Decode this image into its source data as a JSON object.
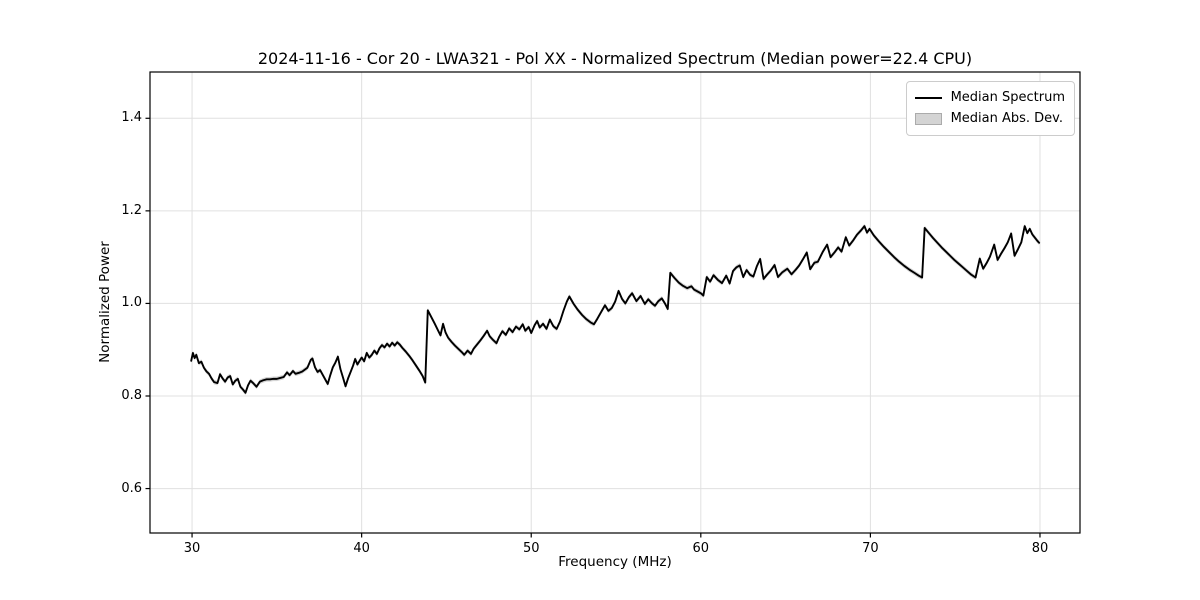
{
  "chart_data": {
    "type": "line",
    "title": "2024-11-16 - Cor 20 - LWA321 - Pol XX - Normalized Spectrum (Median power=22.4 CPU)",
    "xlabel": "Frequency (MHz)",
    "ylabel": "Normalized Power",
    "xlim": [
      27.52,
      82.36
    ],
    "ylim": [
      0.504,
      1.5
    ],
    "xticks": [
      30,
      40,
      50,
      60,
      70,
      80
    ],
    "yticks": [
      0.6,
      0.8,
      1.0,
      1.2,
      1.4
    ],
    "grid": true,
    "grid_color": "#e0e0e0",
    "line_color": "#000000",
    "band_color": "#d4d4d4",
    "legend": {
      "position": "upper right",
      "entries": [
        {
          "label": "Median Spectrum",
          "type": "line",
          "color": "#000000"
        },
        {
          "label": "Median Abs. Dev.",
          "type": "patch",
          "color": "#d4d4d4"
        }
      ]
    },
    "mad_band_halfwidth": 0.005,
    "series": [
      {
        "name": "Median Spectrum",
        "points": [
          [
            29.95,
            0.876
          ],
          [
            30.05,
            0.893
          ],
          [
            30.15,
            0.882
          ],
          [
            30.25,
            0.889
          ],
          [
            30.4,
            0.871
          ],
          [
            30.55,
            0.874
          ],
          [
            30.7,
            0.861
          ],
          [
            30.85,
            0.853
          ],
          [
            31.0,
            0.848
          ],
          [
            31.15,
            0.838
          ],
          [
            31.3,
            0.83
          ],
          [
            31.5,
            0.828
          ],
          [
            31.65,
            0.847
          ],
          [
            31.8,
            0.838
          ],
          [
            31.95,
            0.831
          ],
          [
            32.1,
            0.84
          ],
          [
            32.25,
            0.843
          ],
          [
            32.4,
            0.825
          ],
          [
            32.55,
            0.833
          ],
          [
            32.7,
            0.837
          ],
          [
            32.85,
            0.82
          ],
          [
            33.0,
            0.814
          ],
          [
            33.15,
            0.807
          ],
          [
            33.3,
            0.823
          ],
          [
            33.45,
            0.833
          ],
          [
            33.6,
            0.828
          ],
          [
            33.8,
            0.82
          ],
          [
            34.0,
            0.831
          ],
          [
            34.2,
            0.834
          ],
          [
            34.4,
            0.836
          ],
          [
            34.6,
            0.836
          ],
          [
            34.8,
            0.837
          ],
          [
            35.0,
            0.837
          ],
          [
            35.2,
            0.839
          ],
          [
            35.4,
            0.841
          ],
          [
            35.6,
            0.851
          ],
          [
            35.75,
            0.845
          ],
          [
            35.95,
            0.854
          ],
          [
            36.1,
            0.848
          ],
          [
            36.3,
            0.85
          ],
          [
            36.5,
            0.853
          ],
          [
            36.65,
            0.857
          ],
          [
            36.8,
            0.861
          ],
          [
            37.0,
            0.878
          ],
          [
            37.1,
            0.881
          ],
          [
            37.25,
            0.862
          ],
          [
            37.4,
            0.852
          ],
          [
            37.55,
            0.856
          ],
          [
            37.7,
            0.846
          ],
          [
            37.85,
            0.836
          ],
          [
            38.0,
            0.826
          ],
          [
            38.15,
            0.845
          ],
          [
            38.3,
            0.862
          ],
          [
            38.45,
            0.872
          ],
          [
            38.6,
            0.885
          ],
          [
            38.75,
            0.858
          ],
          [
            38.9,
            0.84
          ],
          [
            39.05,
            0.821
          ],
          [
            39.2,
            0.838
          ],
          [
            39.35,
            0.852
          ],
          [
            39.5,
            0.866
          ],
          [
            39.62,
            0.88
          ],
          [
            39.75,
            0.868
          ],
          [
            39.88,
            0.876
          ],
          [
            40.0,
            0.883
          ],
          [
            40.15,
            0.875
          ],
          [
            40.3,
            0.893
          ],
          [
            40.45,
            0.883
          ],
          [
            40.6,
            0.889
          ],
          [
            40.75,
            0.898
          ],
          [
            40.9,
            0.891
          ],
          [
            41.05,
            0.903
          ],
          [
            41.2,
            0.91
          ],
          [
            41.35,
            0.905
          ],
          [
            41.5,
            0.913
          ],
          [
            41.65,
            0.907
          ],
          [
            41.8,
            0.915
          ],
          [
            41.95,
            0.909
          ],
          [
            42.1,
            0.916
          ],
          [
            42.25,
            0.911
          ],
          [
            42.4,
            0.904
          ],
          [
            42.6,
            0.896
          ],
          [
            42.8,
            0.887
          ],
          [
            43.0,
            0.877
          ],
          [
            43.2,
            0.866
          ],
          [
            43.4,
            0.855
          ],
          [
            43.6,
            0.843
          ],
          [
            43.75,
            0.829
          ],
          [
            43.9,
            0.985
          ],
          [
            44.1,
            0.971
          ],
          [
            44.3,
            0.957
          ],
          [
            44.5,
            0.942
          ],
          [
            44.65,
            0.931
          ],
          [
            44.8,
            0.956
          ],
          [
            44.95,
            0.937
          ],
          [
            45.1,
            0.926
          ],
          [
            45.3,
            0.917
          ],
          [
            45.5,
            0.909
          ],
          [
            45.7,
            0.902
          ],
          [
            45.9,
            0.895
          ],
          [
            46.05,
            0.889
          ],
          [
            46.25,
            0.898
          ],
          [
            46.45,
            0.891
          ],
          [
            46.6,
            0.902
          ],
          [
            46.8,
            0.911
          ],
          [
            47.0,
            0.92
          ],
          [
            47.2,
            0.93
          ],
          [
            47.4,
            0.941
          ],
          [
            47.55,
            0.929
          ],
          [
            47.75,
            0.921
          ],
          [
            47.95,
            0.914
          ],
          [
            48.1,
            0.927
          ],
          [
            48.3,
            0.94
          ],
          [
            48.5,
            0.932
          ],
          [
            48.7,
            0.946
          ],
          [
            48.9,
            0.938
          ],
          [
            49.1,
            0.95
          ],
          [
            49.3,
            0.944
          ],
          [
            49.5,
            0.955
          ],
          [
            49.65,
            0.941
          ],
          [
            49.85,
            0.949
          ],
          [
            50.0,
            0.936
          ],
          [
            50.2,
            0.953
          ],
          [
            50.35,
            0.962
          ],
          [
            50.5,
            0.948
          ],
          [
            50.7,
            0.956
          ],
          [
            50.9,
            0.945
          ],
          [
            51.1,
            0.965
          ],
          [
            51.3,
            0.951
          ],
          [
            51.5,
            0.945
          ],
          [
            51.7,
            0.961
          ],
          [
            51.9,
            0.984
          ],
          [
            52.1,
            1.004
          ],
          [
            52.25,
            1.015
          ],
          [
            52.5,
            0.999
          ],
          [
            52.75,
            0.986
          ],
          [
            53.0,
            0.975
          ],
          [
            53.25,
            0.966
          ],
          [
            53.5,
            0.959
          ],
          [
            53.7,
            0.955
          ],
          [
            53.9,
            0.967
          ],
          [
            54.1,
            0.98
          ],
          [
            54.35,
            0.996
          ],
          [
            54.55,
            0.984
          ],
          [
            54.75,
            0.99
          ],
          [
            54.95,
            1.004
          ],
          [
            55.15,
            1.027
          ],
          [
            55.35,
            1.01
          ],
          [
            55.55,
            1.0
          ],
          [
            55.75,
            1.013
          ],
          [
            55.95,
            1.022
          ],
          [
            56.2,
            1.005
          ],
          [
            56.45,
            1.016
          ],
          [
            56.7,
            0.999
          ],
          [
            56.9,
            1.009
          ],
          [
            57.1,
            1.001
          ],
          [
            57.3,
            0.995
          ],
          [
            57.5,
            1.005
          ],
          [
            57.7,
            1.011
          ],
          [
            57.9,
            0.999
          ],
          [
            58.05,
            0.988
          ],
          [
            58.2,
            1.066
          ],
          [
            58.45,
            1.055
          ],
          [
            58.7,
            1.045
          ],
          [
            58.95,
            1.038
          ],
          [
            59.2,
            1.033
          ],
          [
            59.45,
            1.037
          ],
          [
            59.6,
            1.03
          ],
          [
            59.8,
            1.026
          ],
          [
            60.0,
            1.022
          ],
          [
            60.15,
            1.017
          ],
          [
            60.35,
            1.057
          ],
          [
            60.55,
            1.047
          ],
          [
            60.75,
            1.061
          ],
          [
            61.0,
            1.051
          ],
          [
            61.25,
            1.044
          ],
          [
            61.5,
            1.06
          ],
          [
            61.7,
            1.043
          ],
          [
            61.9,
            1.07
          ],
          [
            62.1,
            1.078
          ],
          [
            62.3,
            1.082
          ],
          [
            62.5,
            1.057
          ],
          [
            62.7,
            1.072
          ],
          [
            62.9,
            1.062
          ],
          [
            63.1,
            1.058
          ],
          [
            63.3,
            1.08
          ],
          [
            63.5,
            1.096
          ],
          [
            63.7,
            1.053
          ],
          [
            63.9,
            1.062
          ],
          [
            64.1,
            1.07
          ],
          [
            64.35,
            1.083
          ],
          [
            64.55,
            1.057
          ],
          [
            64.8,
            1.067
          ],
          [
            65.1,
            1.075
          ],
          [
            65.35,
            1.063
          ],
          [
            65.6,
            1.073
          ],
          [
            65.8,
            1.082
          ],
          [
            66.0,
            1.094
          ],
          [
            66.25,
            1.11
          ],
          [
            66.45,
            1.074
          ],
          [
            66.7,
            1.088
          ],
          [
            66.9,
            1.09
          ],
          [
            67.2,
            1.112
          ],
          [
            67.45,
            1.127
          ],
          [
            67.65,
            1.1
          ],
          [
            67.9,
            1.111
          ],
          [
            68.1,
            1.121
          ],
          [
            68.3,
            1.112
          ],
          [
            68.55,
            1.143
          ],
          [
            68.75,
            1.125
          ],
          [
            69.0,
            1.137
          ],
          [
            69.2,
            1.148
          ],
          [
            69.45,
            1.158
          ],
          [
            69.65,
            1.167
          ],
          [
            69.8,
            1.153
          ],
          [
            69.95,
            1.161
          ],
          [
            70.2,
            1.147
          ],
          [
            70.5,
            1.134
          ],
          [
            70.8,
            1.122
          ],
          [
            71.1,
            1.111
          ],
          [
            71.4,
            1.1
          ],
          [
            71.7,
            1.09
          ],
          [
            72.0,
            1.081
          ],
          [
            72.3,
            1.073
          ],
          [
            72.6,
            1.066
          ],
          [
            72.85,
            1.06
          ],
          [
            73.05,
            1.056
          ],
          [
            73.2,
            1.163
          ],
          [
            73.45,
            1.152
          ],
          [
            73.7,
            1.141
          ],
          [
            73.95,
            1.131
          ],
          [
            74.2,
            1.121
          ],
          [
            74.45,
            1.112
          ],
          [
            74.7,
            1.103
          ],
          [
            74.95,
            1.094
          ],
          [
            75.2,
            1.086
          ],
          [
            75.45,
            1.078
          ],
          [
            75.7,
            1.07
          ],
          [
            75.95,
            1.062
          ],
          [
            76.2,
            1.056
          ],
          [
            76.45,
            1.097
          ],
          [
            76.65,
            1.075
          ],
          [
            76.85,
            1.087
          ],
          [
            77.05,
            1.101
          ],
          [
            77.3,
            1.127
          ],
          [
            77.5,
            1.094
          ],
          [
            77.7,
            1.107
          ],
          [
            77.9,
            1.119
          ],
          [
            78.1,
            1.132
          ],
          [
            78.3,
            1.151
          ],
          [
            78.5,
            1.103
          ],
          [
            78.7,
            1.117
          ],
          [
            78.9,
            1.132
          ],
          [
            79.1,
            1.167
          ],
          [
            79.25,
            1.152
          ],
          [
            79.4,
            1.161
          ],
          [
            79.55,
            1.149
          ],
          [
            79.7,
            1.142
          ],
          [
            79.85,
            1.135
          ],
          [
            79.95,
            1.131
          ]
        ]
      }
    ]
  }
}
